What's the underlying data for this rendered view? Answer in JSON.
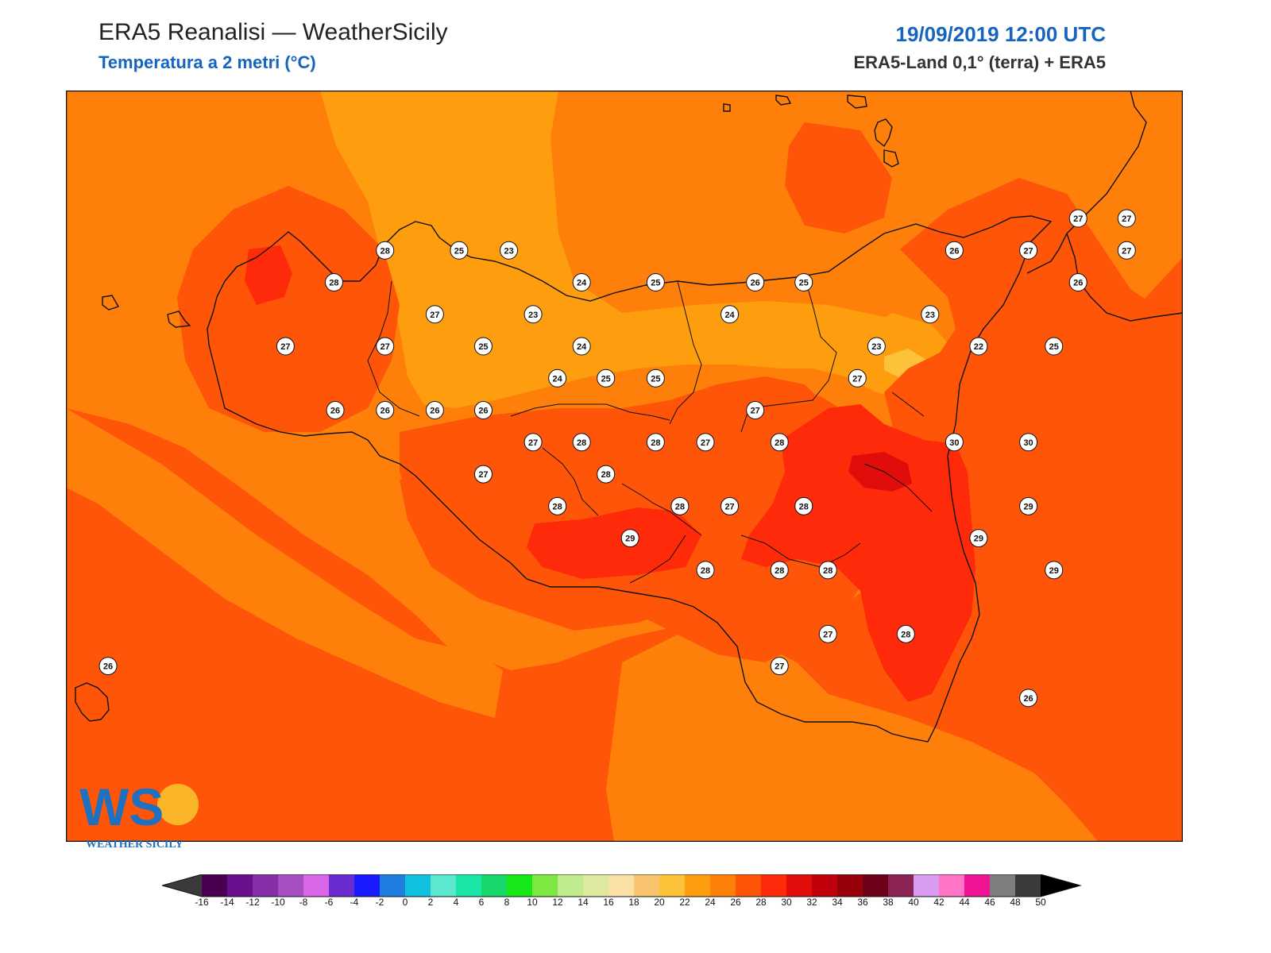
{
  "header": {
    "title": "ERA5 Reanalisi — WeatherSicily",
    "subtitle": "Temperatura a 2 metri (°C)",
    "datetime": "19/09/2019 12:00 UTC",
    "source": "ERA5-Land 0,1° (terra) + ERA5"
  },
  "logo": {
    "letters": "WS",
    "text": "WEATHER SICILY"
  },
  "colorbar": {
    "ticks": [
      "-16",
      "-14",
      "-12",
      "-10",
      "-8",
      "-6",
      "-4",
      "-2",
      "0",
      "2",
      "4",
      "6",
      "8",
      "10",
      "12",
      "14",
      "16",
      "18",
      "20",
      "22",
      "24",
      "26",
      "28",
      "30",
      "32",
      "34",
      "36",
      "38",
      "40",
      "42",
      "44",
      "46",
      "48",
      "50"
    ],
    "colors": [
      "#4a0050",
      "#6a0f8e",
      "#8530a8",
      "#a64fc0",
      "#d966e6",
      "#6a2bd0",
      "#1a1aff",
      "#1f7fe0",
      "#11c1e0",
      "#5ce8cf",
      "#1ce6a6",
      "#17d86a",
      "#17e817",
      "#7ee843",
      "#c0ec8e",
      "#dfe8a0",
      "#fbe0a6",
      "#f8c46f",
      "#fdc23a",
      "#fe9d0e",
      "#fe7f0a",
      "#fe5509",
      "#fe2a09",
      "#e00d0a",
      "#c0000b",
      "#960008",
      "#6e0018",
      "#8b2454",
      "#d89cf0",
      "#ff74c4",
      "#f01494",
      "#7e7e7e",
      "#3a3a3a"
    ],
    "under_color": "#3a3a3a",
    "over_color": "#000000"
  },
  "map": {
    "background_color": "#fe5509",
    "temperature_labels": [
      {
        "value": "28",
        "lon": 12.5,
        "lat": 38.1
      },
      {
        "value": "25",
        "lon": 13.08,
        "lat": 38.1
      },
      {
        "value": "23",
        "lon": 13.47,
        "lat": 38.1
      },
      {
        "value": "28",
        "lon": 12.1,
        "lat": 38.0
      },
      {
        "value": "24",
        "lon": 14.04,
        "lat": 38.0
      },
      {
        "value": "25",
        "lon": 14.62,
        "lat": 38.0
      },
      {
        "value": "26",
        "lon": 15.4,
        "lat": 38.0
      },
      {
        "value": "25",
        "lon": 15.78,
        "lat": 38.0
      },
      {
        "value": "26",
        "lon": 16.96,
        "lat": 38.1
      },
      {
        "value": "27",
        "lon": 17.54,
        "lat": 38.1
      },
      {
        "value": "27",
        "lon": 17.93,
        "lat": 38.2
      },
      {
        "value": "27",
        "lon": 18.31,
        "lat": 38.2
      },
      {
        "value": "27",
        "lon": 18.31,
        "lat": 38.1
      },
      {
        "value": "26",
        "lon": 17.93,
        "lat": 38.0
      },
      {
        "value": "27",
        "lon": 12.89,
        "lat": 37.9
      },
      {
        "value": "23",
        "lon": 13.66,
        "lat": 37.9
      },
      {
        "value": "24",
        "lon": 15.2,
        "lat": 37.9
      },
      {
        "value": "23",
        "lon": 16.77,
        "lat": 37.9
      },
      {
        "value": "27",
        "lon": 11.72,
        "lat": 37.8
      },
      {
        "value": "27",
        "lon": 12.5,
        "lat": 37.8
      },
      {
        "value": "25",
        "lon": 13.27,
        "lat": 37.8
      },
      {
        "value": "24",
        "lon": 14.04,
        "lat": 37.8
      },
      {
        "value": "23",
        "lon": 16.35,
        "lat": 37.8
      },
      {
        "value": "22",
        "lon": 17.15,
        "lat": 37.8
      },
      {
        "value": "25",
        "lon": 17.74,
        "lat": 37.8
      },
      {
        "value": "24",
        "lon": 13.85,
        "lat": 37.7
      },
      {
        "value": "25",
        "lon": 14.23,
        "lat": 37.7
      },
      {
        "value": "25",
        "lon": 14.62,
        "lat": 37.7
      },
      {
        "value": "27",
        "lon": 16.2,
        "lat": 37.7
      },
      {
        "value": "26",
        "lon": 12.11,
        "lat": 37.6
      },
      {
        "value": "26",
        "lon": 12.5,
        "lat": 37.6
      },
      {
        "value": "26",
        "lon": 12.89,
        "lat": 37.6
      },
      {
        "value": "26",
        "lon": 13.27,
        "lat": 37.6
      },
      {
        "value": "27",
        "lon": 15.4,
        "lat": 37.6
      },
      {
        "value": "27",
        "lon": 13.66,
        "lat": 37.5
      },
      {
        "value": "28",
        "lon": 14.04,
        "lat": 37.5
      },
      {
        "value": "28",
        "lon": 14.62,
        "lat": 37.5
      },
      {
        "value": "27",
        "lon": 15.01,
        "lat": 37.5
      },
      {
        "value": "28",
        "lon": 15.59,
        "lat": 37.5
      },
      {
        "value": "30",
        "lon": 16.96,
        "lat": 37.5
      },
      {
        "value": "30",
        "lon": 17.54,
        "lat": 37.5
      },
      {
        "value": "27",
        "lon": 13.27,
        "lat": 37.4
      },
      {
        "value": "28",
        "lon": 14.23,
        "lat": 37.4
      },
      {
        "value": "28",
        "lon": 13.85,
        "lat": 37.3
      },
      {
        "value": "28",
        "lon": 14.81,
        "lat": 37.3
      },
      {
        "value": "27",
        "lon": 15.2,
        "lat": 37.3
      },
      {
        "value": "28",
        "lon": 15.78,
        "lat": 37.3
      },
      {
        "value": "29",
        "lon": 17.54,
        "lat": 37.3
      },
      {
        "value": "29",
        "lon": 14.42,
        "lat": 37.2
      },
      {
        "value": "29",
        "lon": 17.15,
        "lat": 37.2
      },
      {
        "value": "28",
        "lon": 15.01,
        "lat": 37.1
      },
      {
        "value": "28",
        "lon": 15.59,
        "lat": 37.1
      },
      {
        "value": "28",
        "lon": 15.97,
        "lat": 37.1
      },
      {
        "value": "29",
        "lon": 17.74,
        "lat": 37.1
      },
      {
        "value": "27",
        "lon": 15.97,
        "lat": 36.9
      },
      {
        "value": "28",
        "lon": 16.58,
        "lat": 36.9
      },
      {
        "value": "27",
        "lon": 15.59,
        "lat": 36.8
      },
      {
        "value": "26",
        "lon": 10.33,
        "lat": 36.8
      },
      {
        "value": "26",
        "lon": 17.54,
        "lat": 36.7
      }
    ]
  }
}
